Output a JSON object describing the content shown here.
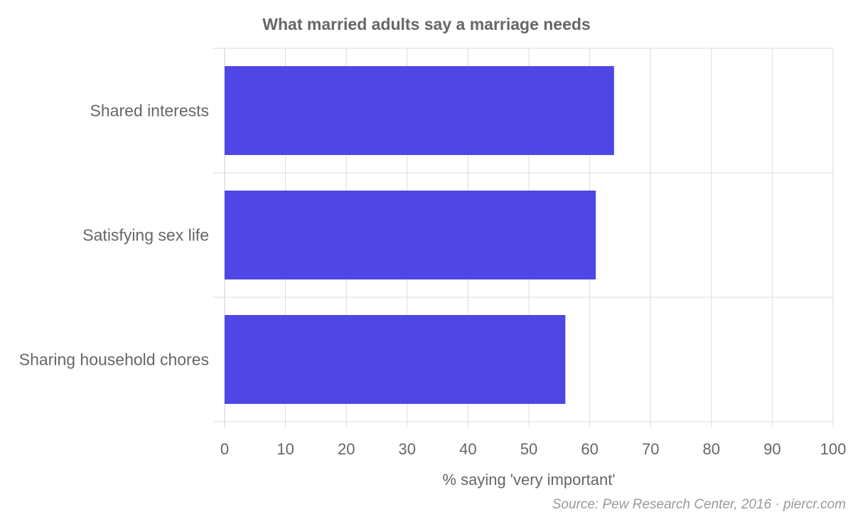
{
  "chart_data": {
    "type": "bar",
    "orientation": "horizontal",
    "title": "What married adults say a marriage needs",
    "categories": [
      "Shared interests",
      "Satisfying sex life",
      "Sharing household chores"
    ],
    "values": [
      64,
      61,
      56
    ],
    "xlabel": "% saying 'very important'",
    "ylabel": "",
    "xlim": [
      0,
      100
    ],
    "xticks": [
      0,
      10,
      20,
      30,
      40,
      50,
      60,
      70,
      80,
      90,
      100
    ],
    "grid": true,
    "bar_color": "#4f46e5",
    "source": "Source: Pew Research Center, 2016 · piercr.com"
  }
}
